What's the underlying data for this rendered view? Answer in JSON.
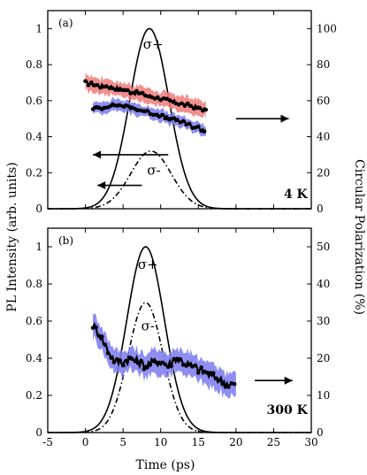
{
  "chart_data": [
    {
      "type": "line",
      "panel_label": "(a)",
      "temperature_label": "4 K",
      "xlim": [
        -5,
        30
      ],
      "ylim": [
        0,
        1.1
      ],
      "ylim_right": [
        0,
        110
      ],
      "xticks": [
        -5,
        0,
        5,
        10,
        15,
        20,
        25,
        30
      ],
      "yticks": [
        0,
        0.2,
        0.4,
        0.6,
        0.8,
        1
      ],
      "yticks_right": [
        0,
        20,
        40,
        60,
        80,
        100
      ],
      "series": [
        {
          "name": "σ+",
          "kind": "solid",
          "color": "#000000",
          "axis": "left",
          "peak": 1.0,
          "center": 8.5,
          "sigma": 2.6
        },
        {
          "name": "σ-",
          "kind": "dashdot",
          "color": "#000000",
          "axis": "left",
          "peak": 0.32,
          "center": 8.7,
          "sigma": 2.7
        }
      ],
      "polarization": [
        {
          "axis": "right",
          "band_color": "#f07a7a",
          "x": [
            0,
            1,
            2,
            3,
            4,
            5,
            6,
            7,
            8,
            9,
            10,
            11,
            12,
            13,
            14,
            15,
            16
          ],
          "y": [
            70,
            69,
            68,
            68,
            67,
            66,
            65,
            64,
            63,
            62,
            61,
            60,
            59,
            58,
            57,
            56,
            55
          ],
          "band": 4
        },
        {
          "axis": "right",
          "band_color": "#7a7af0",
          "x": [
            1,
            2,
            3,
            4,
            5,
            6,
            7,
            8,
            9,
            10,
            11,
            12,
            13,
            14,
            15,
            16
          ],
          "y": [
            56,
            56,
            57,
            58,
            57,
            56,
            55,
            54,
            53,
            52,
            50,
            49,
            48,
            46,
            45,
            43
          ],
          "band": 3
        }
      ],
      "annotations": [
        "σ+",
        "σ-"
      ]
    },
    {
      "type": "line",
      "panel_label": "(b)",
      "temperature_label": "300 K",
      "xlim": [
        -5,
        30
      ],
      "ylim": [
        0,
        1.1
      ],
      "ylim_right": [
        0,
        55
      ],
      "xticks": [
        -5,
        0,
        5,
        10,
        15,
        20,
        25,
        30
      ],
      "yticks": [
        0,
        0.2,
        0.4,
        0.6,
        0.8,
        1
      ],
      "yticks_right": [
        0,
        10,
        20,
        30,
        40,
        50
      ],
      "series": [
        {
          "name": "σ+",
          "kind": "solid",
          "color": "#000000",
          "axis": "left",
          "peak": 1.0,
          "center": 8.0,
          "sigma": 2.5
        },
        {
          "name": "σ-",
          "kind": "dashdot",
          "color": "#000000",
          "axis": "left",
          "peak": 0.7,
          "center": 8.0,
          "sigma": 2.3
        }
      ],
      "polarization": [
        {
          "axis": "right",
          "band_color": "#7a7af0",
          "x": [
            1,
            2,
            3,
            4,
            5,
            6,
            7,
            8,
            9,
            10,
            11,
            12,
            13,
            14,
            15,
            16,
            17,
            18,
            19,
            20
          ],
          "y": [
            29,
            26,
            22,
            19,
            19,
            20,
            19,
            18,
            19,
            19,
            18,
            20,
            19,
            18,
            17,
            16,
            15,
            14,
            13,
            13
          ],
          "band": 3
        }
      ],
      "annotations": [
        "σ+",
        "σ-"
      ]
    }
  ],
  "axes": {
    "xlabel": "Time (ps)",
    "ylabel_left": "PL Intensity (arb. units)",
    "ylabel_right": "Circular Polarization (%)"
  }
}
